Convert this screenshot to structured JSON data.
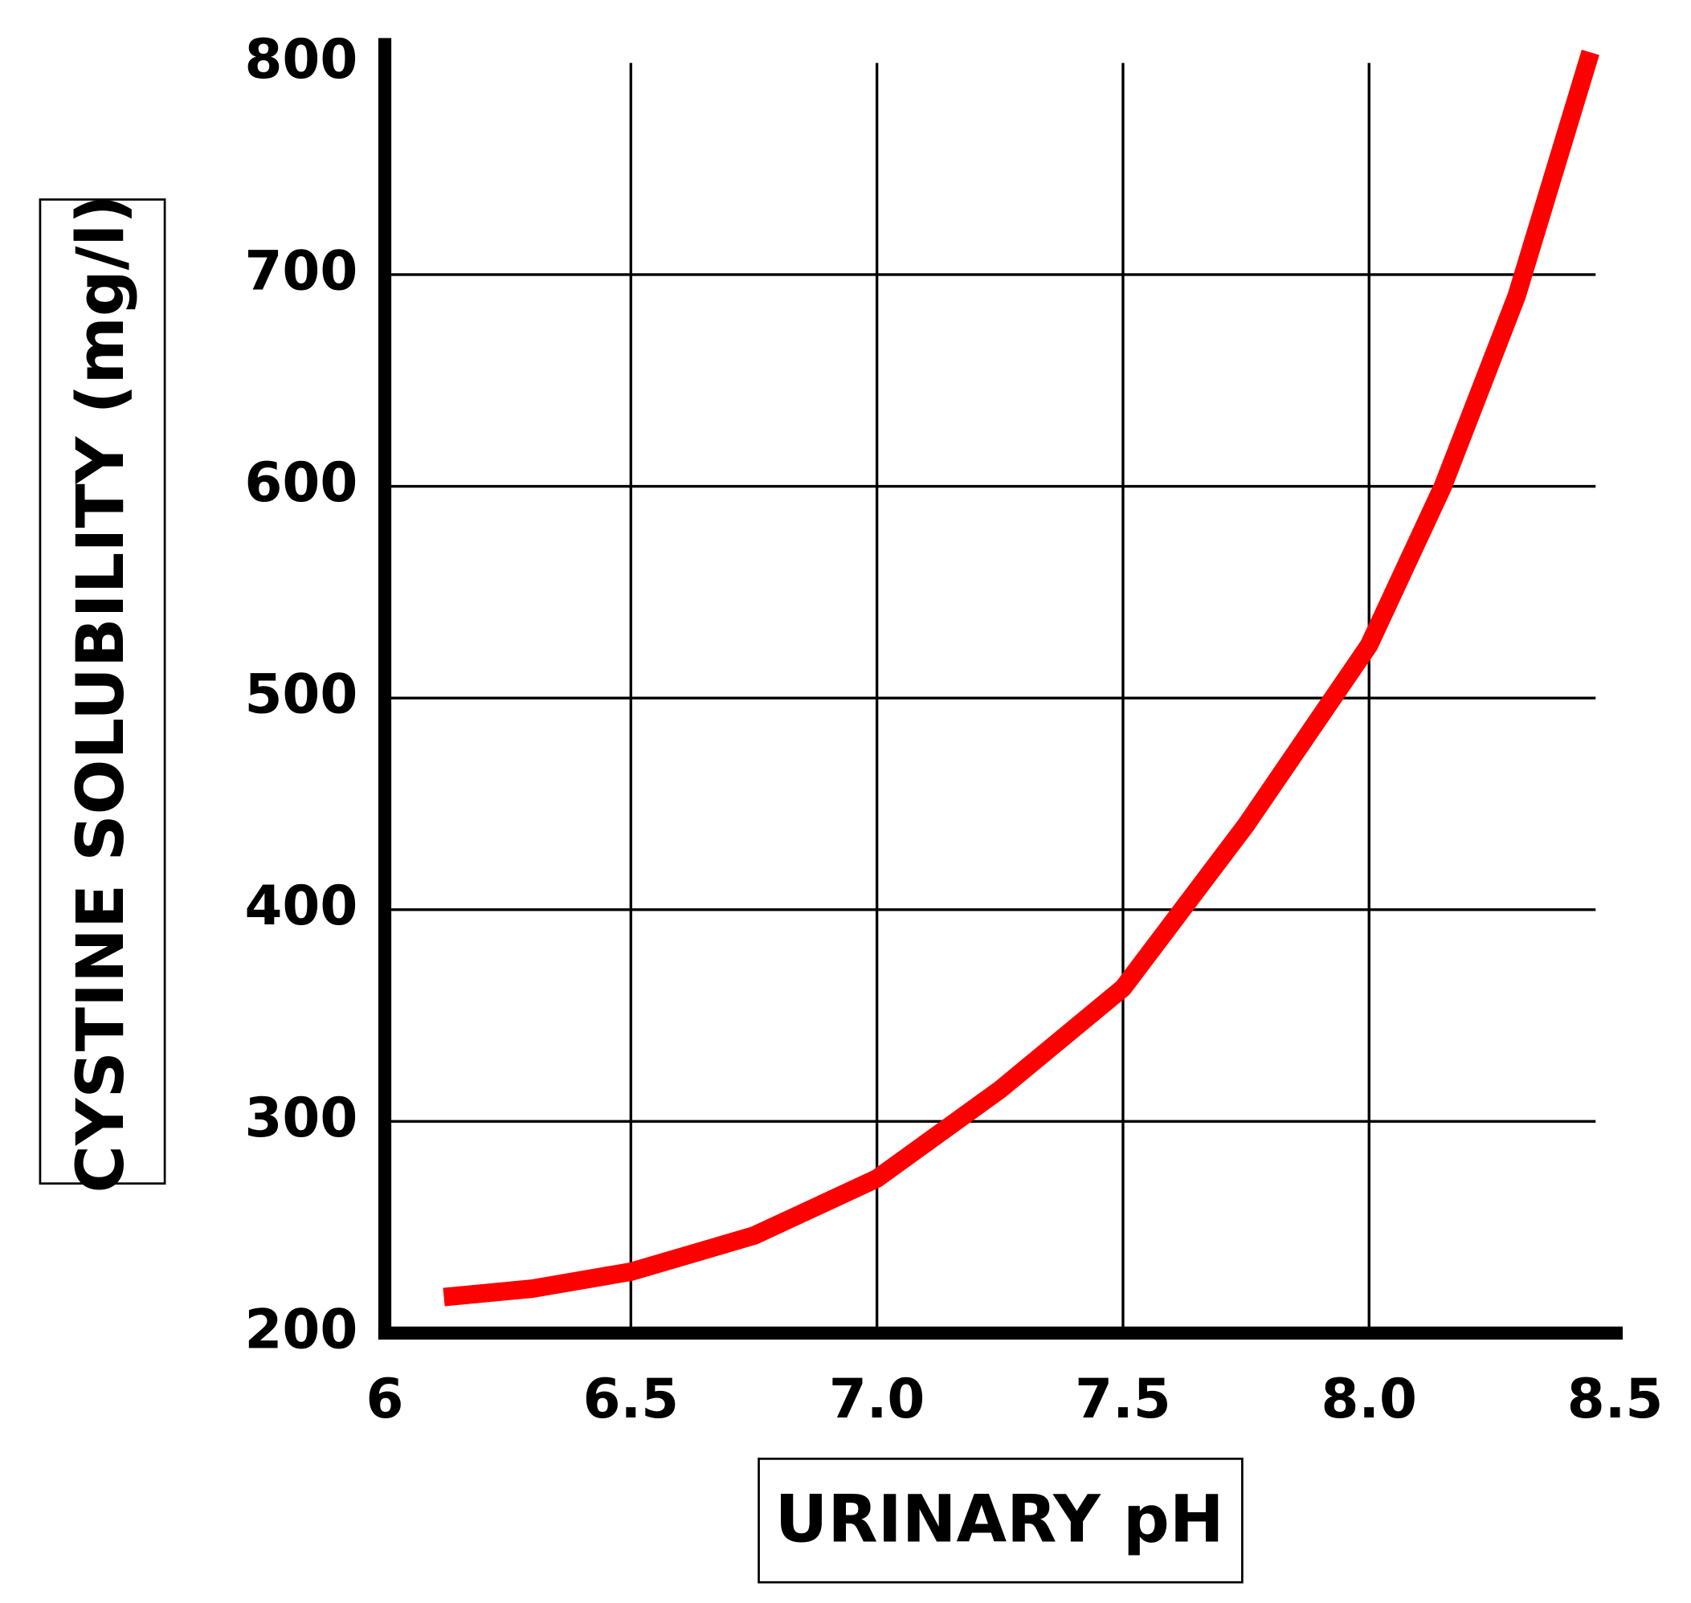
{
  "chart_data": {
    "type": "line",
    "x_label": "URINARY pH",
    "y_label": "CYSTINE SOLUBILITY (mg/l)",
    "x": [
      6.12,
      6.3,
      6.5,
      6.75,
      7.0,
      7.25,
      7.5,
      7.75,
      8.0,
      8.15,
      8.3,
      8.45
    ],
    "values": [
      217,
      221,
      229,
      246,
      273,
      315,
      363,
      440,
      525,
      600,
      690,
      805
    ],
    "color": "#ff0000",
    "xlim": [
      6,
      8.5
    ],
    "xticks": [
      6,
      6.5,
      {
        "value": 7,
        "label": "7.0"
      },
      7.5,
      {
        "value": 8,
        "label": "8.0"
      },
      8.5
    ],
    "ylim": [
      200,
      800
    ],
    "yticks": [
      200,
      300,
      400,
      500,
      600,
      700,
      800
    ],
    "grid": true
  }
}
